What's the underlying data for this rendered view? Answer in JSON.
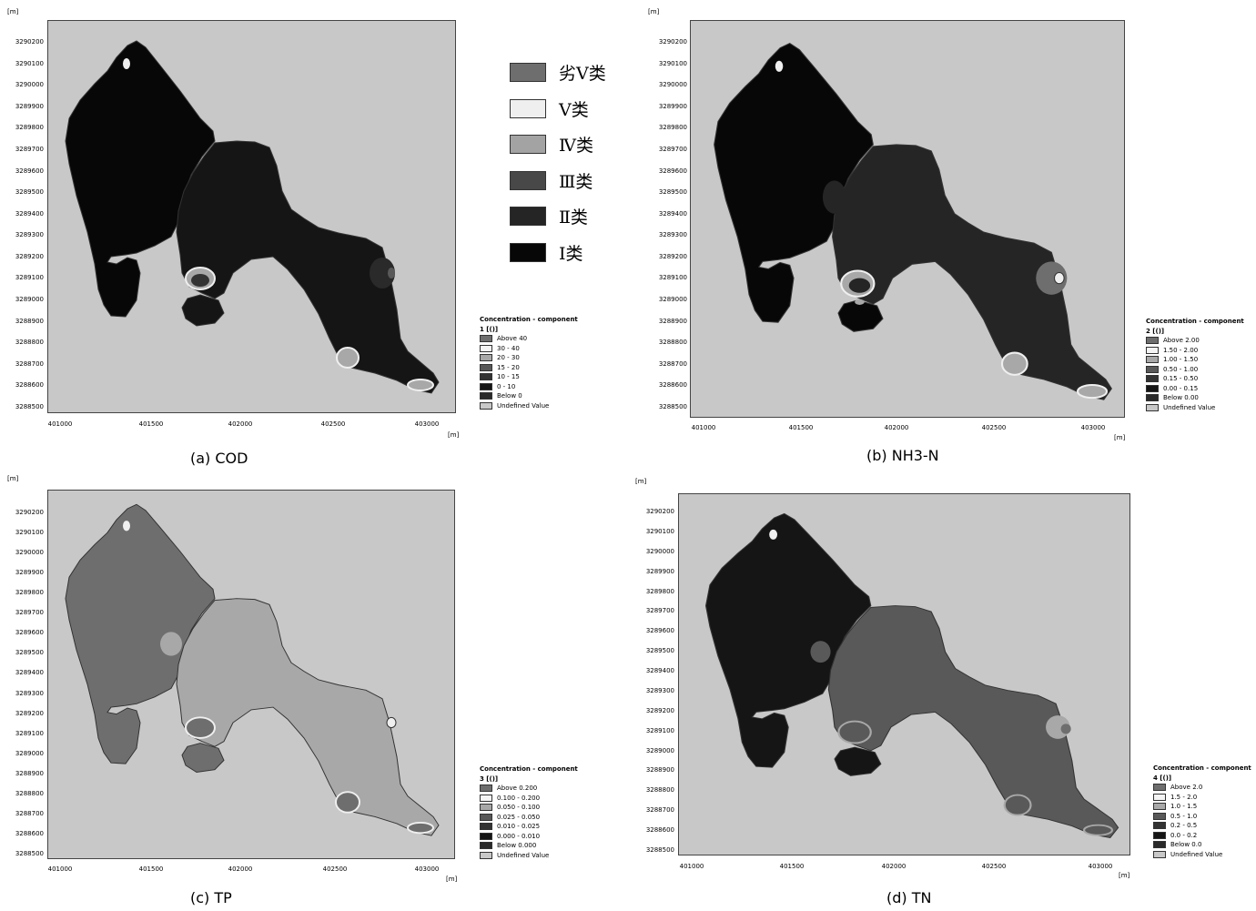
{
  "unit_label": "[m]",
  "y_ticks": [
    "3290200",
    "3290100",
    "3290000",
    "3289900",
    "3289800",
    "3289700",
    "3289600",
    "3289500",
    "3289400",
    "3289300",
    "3289200",
    "3289100",
    "3289000",
    "3288900",
    "3288800",
    "3288700",
    "3288600",
    "3288500"
  ],
  "x_ticks": [
    "401000",
    "401500",
    "402000",
    "402500",
    "403000"
  ],
  "class_legend": [
    {
      "label": "劣Ⅴ类",
      "color": "#6e6e6e"
    },
    {
      "label": "Ⅴ类",
      "color": "#efefef"
    },
    {
      "label": "Ⅳ类",
      "color": "#a3a3a3"
    },
    {
      "label": "Ⅲ类",
      "color": "#484848"
    },
    {
      "label": "Ⅱ类",
      "color": "#252525"
    },
    {
      "label": "Ⅰ类",
      "color": "#070707"
    }
  ],
  "panels": [
    {
      "caption": "(a) COD",
      "legend_title": "Concentration - component",
      "legend_subtitle": "1 [()]",
      "legend_items": [
        {
          "label": "Above 40",
          "color": "#6e6e6e"
        },
        {
          "label": "30 - 40",
          "color": "#f4f4f4"
        },
        {
          "label": "20 - 30",
          "color": "#a8a8a8"
        },
        {
          "label": "15 - 20",
          "color": "#595959"
        },
        {
          "label": "10 - 15",
          "color": "#333333"
        },
        {
          "label": "0 - 10",
          "color": "#151515"
        },
        {
          "label": "Below  0",
          "color": "#2a2a2a"
        },
        {
          "label": "Undefined Value",
          "color": "#c8c8c8"
        }
      ]
    },
    {
      "caption": "(b) NH3-N",
      "legend_title": "Concentration - component",
      "legend_subtitle": "2 [()]",
      "legend_items": [
        {
          "label": "Above 2.00",
          "color": "#6e6e6e"
        },
        {
          "label": "1.50 - 2.00",
          "color": "#f4f4f4"
        },
        {
          "label": "1.00 - 1.50",
          "color": "#a8a8a8"
        },
        {
          "label": "0.50 - 1.00",
          "color": "#595959"
        },
        {
          "label": "0.15 - 0.50",
          "color": "#333333"
        },
        {
          "label": "0.00 - 0.15",
          "color": "#151515"
        },
        {
          "label": "Below 0.00",
          "color": "#2a2a2a"
        },
        {
          "label": "Undefined Value",
          "color": "#c8c8c8"
        }
      ]
    },
    {
      "caption": "(c) TP",
      "legend_title": "Concentration - component",
      "legend_subtitle": "3 [()]",
      "legend_items": [
        {
          "label": "Above  0.200",
          "color": "#6e6e6e"
        },
        {
          "label": "0.100 - 0.200",
          "color": "#f4f4f4"
        },
        {
          "label": "0.050 - 0.100",
          "color": "#a8a8a8"
        },
        {
          "label": "0.025 - 0.050",
          "color": "#595959"
        },
        {
          "label": "0.010 - 0.025",
          "color": "#333333"
        },
        {
          "label": "0.000 - 0.010",
          "color": "#151515"
        },
        {
          "label": "Below  0.000",
          "color": "#2a2a2a"
        },
        {
          "label": "Undefined Value",
          "color": "#c8c8c8"
        }
      ]
    },
    {
      "caption": "(d) TN",
      "legend_title": "Concentration - component",
      "legend_subtitle": "4 [()]",
      "legend_items": [
        {
          "label": "Above 2.0",
          "color": "#6e6e6e"
        },
        {
          "label": "1.5 - 2.0",
          "color": "#f4f4f4"
        },
        {
          "label": "1.0 - 1.5",
          "color": "#a8a8a8"
        },
        {
          "label": "0.5 - 1.0",
          "color": "#595959"
        },
        {
          "label": "0.2 - 0.5",
          "color": "#333333"
        },
        {
          "label": "0.0 - 0.2",
          "color": "#151515"
        },
        {
          "label": "Below 0.0",
          "color": "#2a2a2a"
        },
        {
          "label": "Undefined Value",
          "color": "#c8c8c8"
        }
      ]
    }
  ],
  "colors": {
    "background": "#c8c8c8",
    "class_I": "#070707",
    "class_II": "#252525",
    "class_III": "#484848",
    "class_IV": "#a3a3a3",
    "class_V": "#efefef",
    "worse_than_V": "#6e6e6e"
  }
}
